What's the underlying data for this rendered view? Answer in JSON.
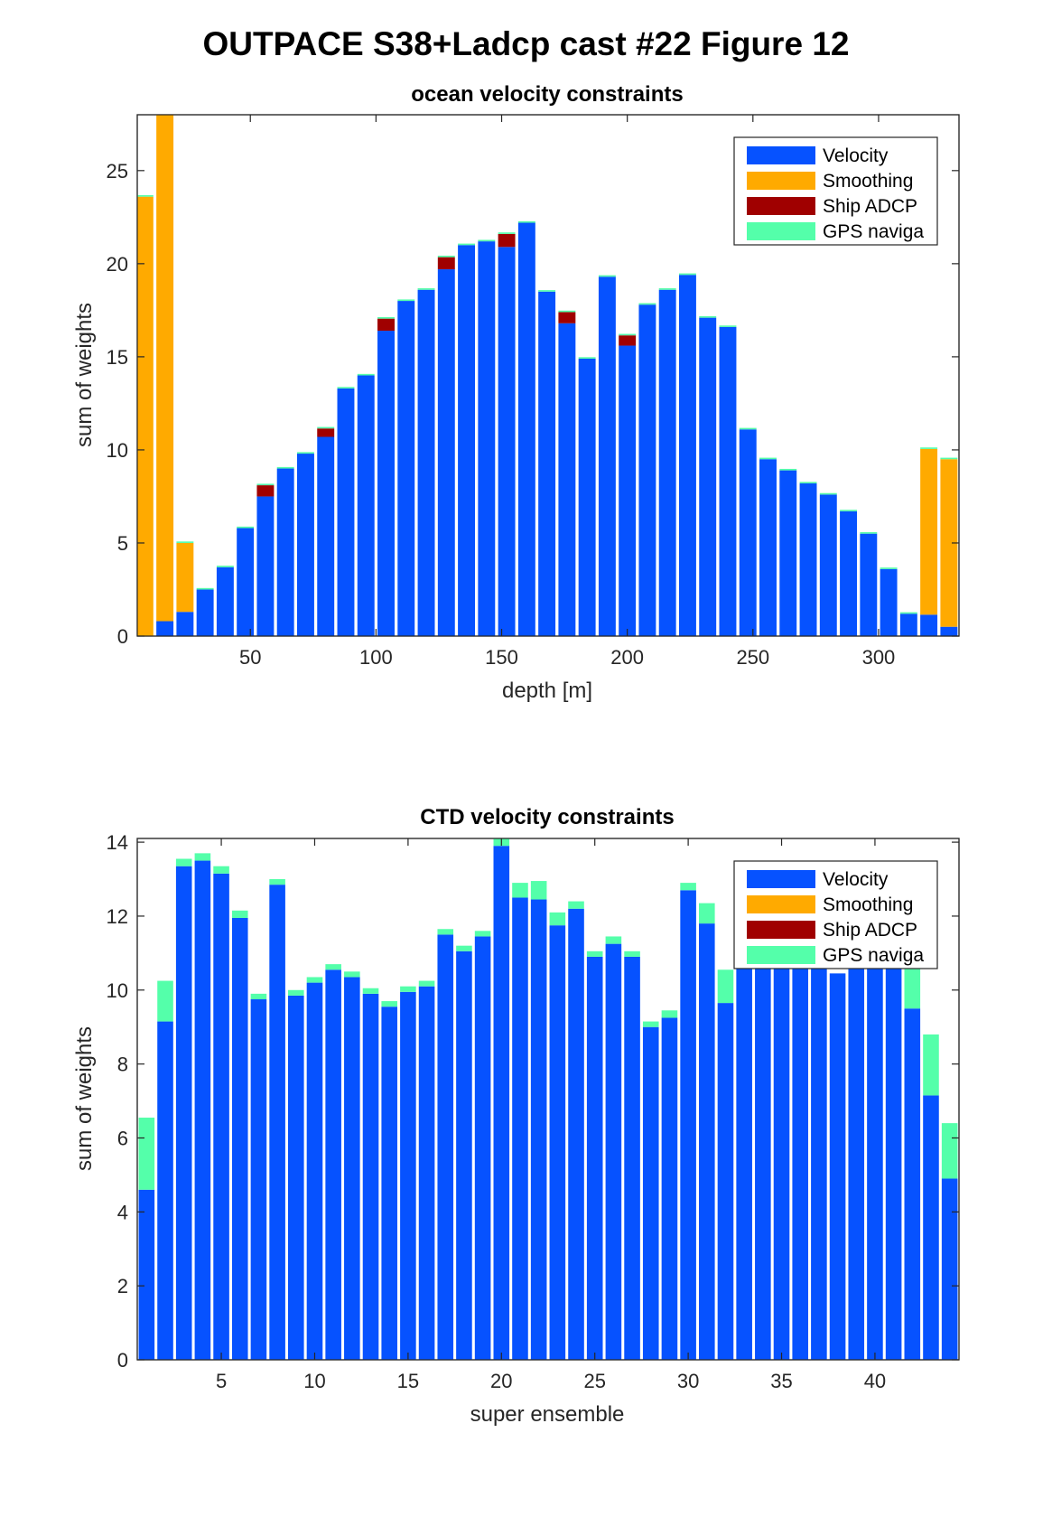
{
  "figure": {
    "title": "OUTPACE S38+Ladcp cast #22  Figure 12"
  },
  "colors": {
    "velocity": "#0652FF",
    "smoothing": "#FFAA00",
    "ship_adcp": "#A00000",
    "gps": "#54FFAA"
  },
  "chart_data": [
    {
      "type": "bar",
      "stacked": true,
      "title": "ocean velocity constraints",
      "xlabel": "depth [m]",
      "ylabel": "sum of weights",
      "xlim": [
        5,
        332
      ],
      "ylim": [
        0,
        28
      ],
      "bar_spacing": 8,
      "xticks": [
        50,
        100,
        150,
        200,
        250,
        300
      ],
      "yticks": [
        0,
        5,
        10,
        15,
        20,
        25
      ],
      "legend_position": "top-right",
      "x": [
        8,
        16,
        24,
        32,
        40,
        48,
        56,
        64,
        72,
        80,
        88,
        96,
        104,
        112,
        120,
        128,
        136,
        144,
        152,
        160,
        168,
        176,
        184,
        192,
        200,
        208,
        216,
        224,
        232,
        240,
        248,
        256,
        264,
        272,
        280,
        288,
        296,
        304,
        312,
        320,
        328
      ],
      "series": [
        {
          "name": "Velocity",
          "color_key": "velocity",
          "values": [
            0,
            0.8,
            1.3,
            2.5,
            3.7,
            5.8,
            7.5,
            9.0,
            9.8,
            10.7,
            13.3,
            14.0,
            16.4,
            18.0,
            18.6,
            19.7,
            21.0,
            21.2,
            20.9,
            22.2,
            18.5,
            16.8,
            14.9,
            19.3,
            15.6,
            17.8,
            18.6,
            19.4,
            17.1,
            16.6,
            11.1,
            9.5,
            8.9,
            8.2,
            7.6,
            6.7,
            5.5,
            3.6,
            1.2,
            1.15,
            0.5
          ]
        },
        {
          "name": "Smoothing",
          "color_key": "smoothing",
          "values": [
            23.6,
            27.4,
            3.7,
            0,
            0,
            0,
            0,
            0,
            0,
            0,
            0,
            0,
            0,
            0,
            0,
            0,
            0,
            0,
            0,
            0,
            0,
            0,
            0,
            0,
            0,
            0,
            0,
            0,
            0,
            0,
            0,
            0,
            0,
            0,
            0,
            0,
            0,
            0,
            0,
            8.9,
            9.0
          ]
        },
        {
          "name": "Ship ADCP",
          "color_key": "ship_adcp",
          "values": [
            0,
            0,
            0,
            0,
            0,
            0,
            0.6,
            0,
            0,
            0.45,
            0,
            0,
            0.65,
            0,
            0,
            0.65,
            0,
            0,
            0.7,
            0,
            0,
            0.6,
            0,
            0,
            0.55,
            0,
            0,
            0,
            0,
            0,
            0,
            0,
            0,
            0,
            0,
            0,
            0,
            0,
            0,
            0,
            0
          ]
        },
        {
          "name": "GPS naviga",
          "color_key": "gps",
          "values": [
            0.08,
            0.08,
            0.08,
            0.08,
            0.08,
            0.08,
            0.08,
            0.08,
            0.08,
            0.08,
            0.08,
            0.08,
            0.08,
            0.08,
            0.08,
            0.08,
            0.08,
            0.08,
            0.08,
            0.08,
            0.08,
            0.08,
            0.08,
            0.08,
            0.08,
            0.08,
            0.08,
            0.08,
            0.08,
            0.08,
            0.08,
            0.08,
            0.08,
            0.08,
            0.08,
            0.08,
            0.08,
            0.08,
            0.08,
            0.08,
            0.08
          ]
        }
      ]
    },
    {
      "type": "bar",
      "stacked": true,
      "title": "CTD velocity constraints",
      "xlabel": "super ensemble",
      "ylabel": "sum of weights",
      "xlim": [
        0.5,
        44.5
      ],
      "ylim": [
        0,
        14.1
      ],
      "bar_spacing": 1,
      "xticks": [
        5,
        10,
        15,
        20,
        25,
        30,
        35,
        40
      ],
      "yticks": [
        0,
        2,
        4,
        6,
        8,
        10,
        12,
        14
      ],
      "legend_position": "top-right",
      "x": [
        1,
        2,
        3,
        4,
        5,
        6,
        7,
        8,
        9,
        10,
        11,
        12,
        13,
        14,
        15,
        16,
        17,
        18,
        19,
        20,
        21,
        22,
        23,
        24,
        25,
        26,
        27,
        28,
        29,
        30,
        31,
        32,
        33,
        34,
        35,
        36,
        37,
        38,
        39,
        40,
        41,
        42,
        43,
        44
      ],
      "series": [
        {
          "name": "Velocity",
          "color_key": "velocity",
          "values": [
            4.6,
            9.15,
            13.35,
            13.5,
            13.15,
            11.95,
            9.75,
            12.85,
            9.85,
            10.2,
            10.55,
            10.35,
            9.9,
            9.55,
            9.95,
            10.1,
            11.5,
            11.05,
            11.45,
            13.9,
            12.5,
            12.45,
            11.75,
            12.2,
            10.9,
            11.25,
            10.9,
            9.0,
            9.25,
            12.7,
            11.8,
            9.65,
            10.7,
            10.7,
            10.7,
            10.7,
            10.7,
            10.45,
            10.7,
            10.7,
            10.7,
            9.5,
            7.15,
            4.9
          ]
        },
        {
          "name": "Smoothing",
          "color_key": "smoothing",
          "values": [
            0,
            0,
            0,
            0,
            0,
            0,
            0,
            0,
            0,
            0,
            0,
            0,
            0,
            0,
            0,
            0,
            0,
            0,
            0,
            0,
            0,
            0,
            0,
            0,
            0,
            0,
            0,
            0,
            0,
            0,
            0,
            0,
            0,
            0,
            0,
            0,
            0,
            0,
            0,
            0,
            0,
            0,
            0,
            0
          ]
        },
        {
          "name": "Ship ADCP",
          "color_key": "ship_adcp",
          "values": [
            0,
            0,
            0,
            0,
            0,
            0,
            0,
            0,
            0,
            0,
            0,
            0,
            0,
            0,
            0,
            0,
            0,
            0,
            0,
            0,
            0,
            0,
            0,
            0,
            0,
            0,
            0,
            0,
            0,
            0,
            0,
            0,
            0,
            0,
            0,
            0,
            0,
            0,
            0,
            0,
            0,
            0,
            0,
            0
          ]
        },
        {
          "name": "GPS naviga",
          "color_key": "gps",
          "values": [
            1.95,
            1.1,
            0.2,
            0.2,
            0.2,
            0.2,
            0.15,
            0.15,
            0.15,
            0.15,
            0.15,
            0.15,
            0.15,
            0.15,
            0.15,
            0.15,
            0.15,
            0.15,
            0.15,
            0.2,
            0.4,
            0.5,
            0.35,
            0.2,
            0.15,
            0.2,
            0.15,
            0.15,
            0.2,
            0.2,
            0.55,
            0.9,
            0,
            0,
            0,
            0,
            0,
            0,
            0,
            0,
            0,
            1.1,
            1.65,
            1.5
          ]
        }
      ]
    }
  ]
}
